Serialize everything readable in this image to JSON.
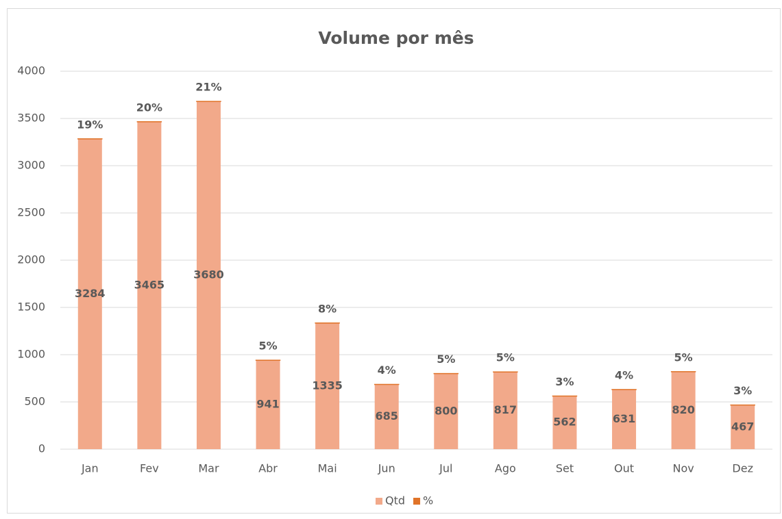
{
  "chart_data": {
    "type": "stacked_bar",
    "title": "Volume por mês",
    "categories": [
      "Jan",
      "Fev",
      "Mar",
      "Abr",
      "Mai",
      "Jun",
      "Jul",
      "Ago",
      "Set",
      "Out",
      "Nov",
      "Dez"
    ],
    "series": [
      {
        "name": "Qtd",
        "color": "#f2a98a",
        "values": [
          3284,
          3465,
          3680,
          941,
          1335,
          685,
          800,
          817,
          562,
          631,
          820,
          467
        ]
      },
      {
        "name": "%",
        "color": "#e07328",
        "values": [
          0.19,
          0.2,
          0.21,
          0.05,
          0.08,
          0.04,
          0.05,
          0.05,
          0.03,
          0.04,
          0.05,
          0.03
        ],
        "value_labels": [
          "19%",
          "20%",
          "21%",
          "5%",
          "8%",
          "4%",
          "5%",
          "5%",
          "3%",
          "4%",
          "5%",
          "3%"
        ]
      }
    ],
    "ylim": [
      0,
      4000
    ],
    "yticks": [
      0,
      500,
      1000,
      1500,
      2000,
      2500,
      3000,
      3500,
      4000
    ],
    "grid": true,
    "legend": "bottom"
  }
}
